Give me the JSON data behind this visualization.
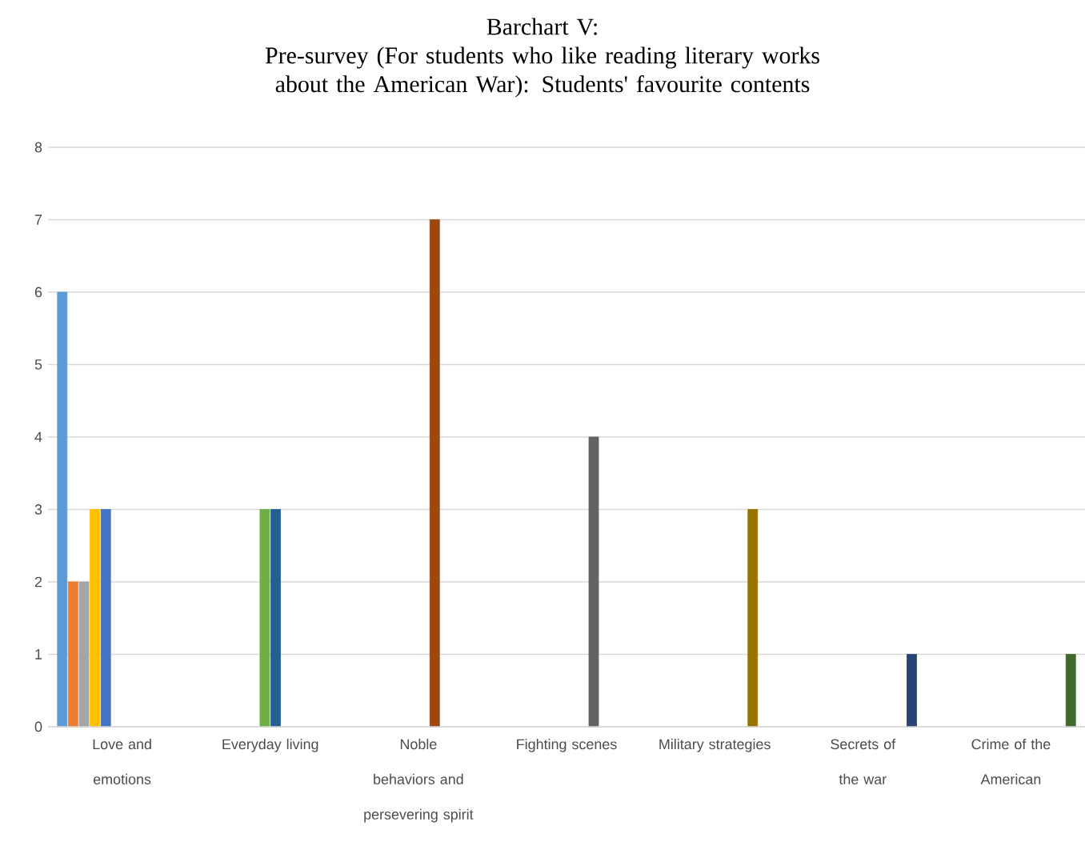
{
  "chart_data": {
    "type": "bar",
    "title": "Barchart V:",
    "subtitle": "Pre-survey (For students who like reading literary works about the American War): Students' favourite contents",
    "categories": [
      "Love and emotions",
      "Everyday living",
      "Noble behaviors and persevering spirit",
      "Fighting scenes",
      "Military strategies",
      "Secrets of the war",
      "Crime of the American"
    ],
    "series": [
      {
        "color": "#5b9bd5",
        "values": [
          6,
          null,
          null,
          null,
          null,
          null,
          null
        ]
      },
      {
        "color": "#ed7d31",
        "values": [
          2,
          null,
          null,
          null,
          null,
          null,
          null
        ]
      },
      {
        "color": "#a5a5a5",
        "values": [
          2,
          null,
          null,
          null,
          null,
          null,
          null
        ]
      },
      {
        "color": "#ffc000",
        "values": [
          3,
          null,
          null,
          null,
          null,
          null,
          null
        ]
      },
      {
        "color": "#4472c4",
        "values": [
          3,
          null,
          null,
          null,
          null,
          null,
          null
        ]
      },
      {
        "color": "#70ad47",
        "values": [
          null,
          3,
          null,
          null,
          null,
          null,
          null
        ]
      },
      {
        "color": "#255e91",
        "values": [
          null,
          3,
          null,
          null,
          null,
          null,
          null
        ]
      },
      {
        "color": "#9e480e",
        "values": [
          null,
          null,
          7,
          null,
          null,
          null,
          null
        ]
      },
      {
        "color": "#636363",
        "values": [
          null,
          null,
          null,
          4,
          null,
          null,
          null
        ]
      },
      {
        "color": "#997300",
        "values": [
          null,
          null,
          null,
          null,
          3,
          null,
          null
        ]
      },
      {
        "color": "#264478",
        "values": [
          null,
          null,
          null,
          null,
          null,
          1,
          null
        ]
      },
      {
        "color": "#43682b",
        "values": [
          null,
          null,
          null,
          null,
          null,
          null,
          1
        ]
      }
    ],
    "ylim": [
      0,
      8
    ],
    "yticks": [
      0,
      1,
      2,
      3,
      4,
      5,
      6,
      7,
      8
    ],
    "grid": "y"
  }
}
